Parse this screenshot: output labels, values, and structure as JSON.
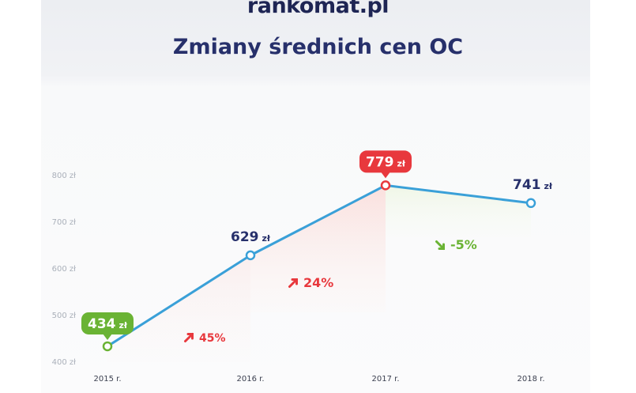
{
  "header": {
    "logo_text": "rankomat.pl",
    "title": "Zmiany średnich cen OC"
  },
  "colors": {
    "line": "#3aa0d8",
    "green": "#6ab334",
    "red": "#e8383d",
    "navy": "#27306b"
  },
  "chart_data": {
    "type": "line",
    "title": "Zmiany średnich cen OC",
    "categories": [
      "2015 r.",
      "2016 r.",
      "2017 r.",
      "2018 r."
    ],
    "series": [
      {
        "values": [
          434,
          629,
          779,
          741
        ]
      }
    ],
    "value_labels": [
      {
        "number": "434",
        "unit": "zł",
        "style": "green-badge"
      },
      {
        "number": "629",
        "unit": "zł",
        "style": "navy"
      },
      {
        "number": "779",
        "unit": "zł",
        "style": "red-badge"
      },
      {
        "number": "741",
        "unit": "zł",
        "style": "navy"
      }
    ],
    "changes": [
      {
        "text": "45%",
        "direction": "up",
        "color": "red"
      },
      {
        "text": "24%",
        "direction": "up",
        "color": "red"
      },
      {
        "text": "-5%",
        "direction": "down",
        "color": "green"
      }
    ],
    "y_ticks": [
      "400 zł",
      "500 zł",
      "600 zł",
      "700 zł",
      "800 zł"
    ],
    "y_tick_values": [
      400,
      500,
      600,
      700,
      800
    ],
    "ylim": [
      400,
      800
    ],
    "grid": false,
    "legend": "none"
  }
}
